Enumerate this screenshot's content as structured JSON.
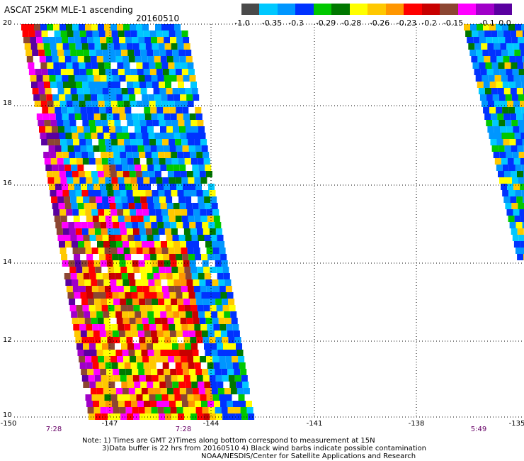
{
  "title": "ASCAT 25KM MLE-1 ascending",
  "date": "20160510",
  "colorbar": {
    "colors": [
      "#4a4a4a",
      "#00c8ff",
      "#0096ff",
      "#0032ff",
      "#00c800",
      "#007800",
      "#ffff00",
      "#ffc800",
      "#ff9600",
      "#ff0000",
      "#c80000",
      "#8c4632",
      "#ff00ff",
      "#a000c8",
      "#5a00a0"
    ],
    "labels": [
      "-1.0",
      "-0.35",
      "-0.3",
      "-0.29",
      "-0.28",
      "-0.26",
      "-0.23",
      "-0.2",
      "-0.15",
      "-0.1",
      "0.0"
    ]
  },
  "axes": {
    "lat_labels": [
      "20",
      "18",
      "16",
      "14",
      "12",
      "10"
    ],
    "lon_labels": [
      "-150",
      "-147",
      "-144",
      "-141",
      "-138",
      "-135"
    ],
    "time_labels": [
      "7:28",
      "7:28",
      "5:49"
    ]
  },
  "notes": [
    "Note: 1) Times are GMT 2)Times along bottom correspond to measurement at 15N",
    "3)Data buffer is 22 hrs from 20160510 4) Black wind barbs indicate possible contamination",
    "NOAA/NESDIS/Center for Satellite Applications and Research"
  ]
}
